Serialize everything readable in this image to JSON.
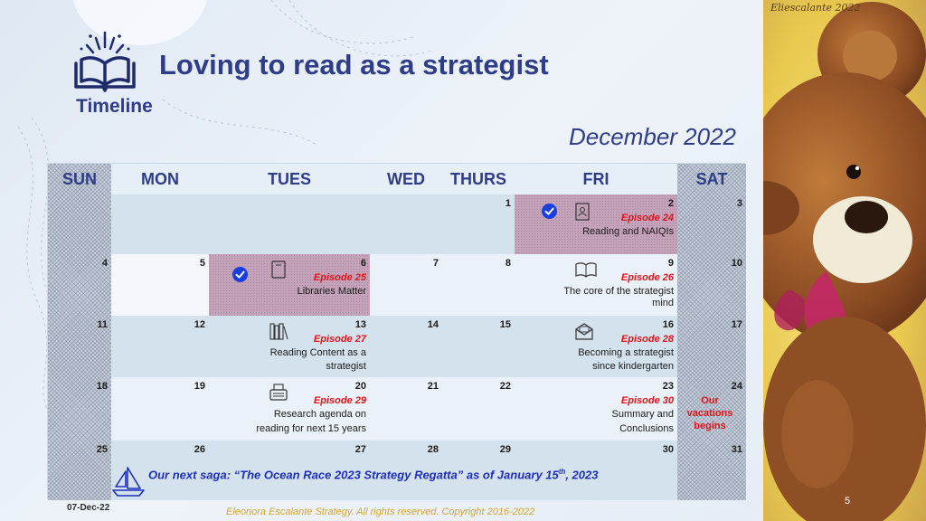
{
  "header": {
    "title": "Loving to read as a strategist",
    "subtitle": "Timeline",
    "month": "December 2022"
  },
  "calendar": {
    "days": [
      "SUN",
      "MON",
      "TUES",
      "WED",
      "THURS",
      "FRI",
      "SAT"
    ],
    "dates": {
      "d1": "1",
      "d2": "2",
      "d3": "3",
      "d4": "4",
      "d5": "5",
      "d6": "6",
      "d7": "7",
      "d8": "8",
      "d9": "9",
      "d10": "10",
      "d11": "11",
      "d12": "12",
      "d13": "13",
      "d14": "14",
      "d15": "15",
      "d16": "16",
      "d17": "17",
      "d18": "18",
      "d19": "19",
      "d20": "20",
      "d21": "21",
      "d22": "22",
      "d23": "23",
      "d24": "24",
      "d25": "25",
      "d26": "26",
      "d27": "27",
      "d28": "28",
      "d29": "29",
      "d30": "30",
      "d31": "31"
    },
    "events": {
      "e24": {
        "episode": "Episode 24",
        "desc": "Reading and NAIQIs"
      },
      "e25": {
        "episode": "Episode 25",
        "desc": "Libraries Matter"
      },
      "e26": {
        "episode": "Episode 26",
        "desc1": "The core of the strategist",
        "desc2": "mind"
      },
      "e27": {
        "episode": "Episode 27",
        "desc1": "Reading Content as a",
        "desc2": "strategist"
      },
      "e28": {
        "episode": "Episode 28",
        "desc1": "Becoming a strategist",
        "desc2": "since kindergarten"
      },
      "e29": {
        "episode": "Episode 29",
        "desc1": "Research agenda on",
        "desc2": "reading for next 15 years"
      },
      "e30": {
        "episode": "Episode 30",
        "desc1": "Summary and",
        "desc2": "Conclusions"
      }
    },
    "vacation": {
      "line1": "Our",
      "line2": "vacations",
      "line3": "begins"
    },
    "saga": {
      "text_before": "Our next saga: “The Ocean Race 2023 Strategy Regatta” as of January 15",
      "sup": "th",
      "text_after": ", 2023"
    }
  },
  "footer": {
    "date": "07-Dec-22",
    "copyright": "Eleonora Escalante Strategy. All rights reserved. Copyright 2016-2022",
    "page": "5"
  },
  "art": {
    "signature": "Eliescalante 2022"
  },
  "colors": {
    "title": "#2f3d88",
    "episode": "#e0141b",
    "saga": "#1f2fb8",
    "highlight": "#c4a3bb",
    "check": "#1a3fe0"
  }
}
